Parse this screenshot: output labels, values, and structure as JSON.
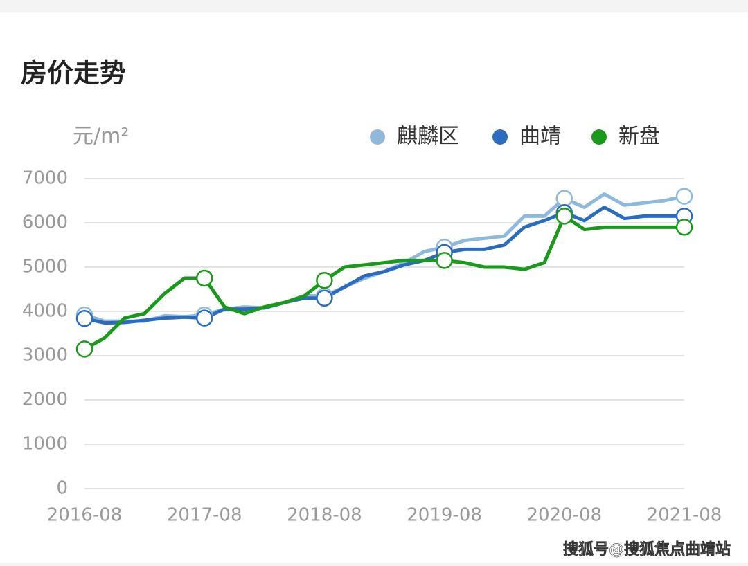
{
  "chart_data": {
    "type": "line",
    "title": "房价走势",
    "y_label": "元/m²",
    "categories": [
      "2016-08",
      null,
      null,
      null,
      null,
      null,
      "2017-08",
      null,
      null,
      null,
      null,
      null,
      "2018-08",
      null,
      null,
      null,
      null,
      null,
      "2019-08",
      null,
      null,
      null,
      null,
      null,
      "2020-08",
      null,
      null,
      null,
      null,
      null,
      "2021-08"
    ],
    "series": [
      {
        "name": "麒麟区",
        "color": "#8fb9dc",
        "values": [
          3920,
          3780,
          3780,
          3780,
          3900,
          3880,
          3920,
          4050,
          4100,
          4080,
          4200,
          4350,
          4350,
          4550,
          4750,
          4900,
          5100,
          5350,
          5450,
          5600,
          5650,
          5700,
          6150,
          6150,
          6550,
          6350,
          6650,
          6400,
          6450,
          6500,
          6600
        ]
      },
      {
        "name": "曲靖",
        "color": "#2a6cbf",
        "values": [
          3840,
          3740,
          3750,
          3800,
          3850,
          3870,
          3850,
          4050,
          4050,
          4080,
          4200,
          4300,
          4300,
          4550,
          4800,
          4900,
          5050,
          5150,
          5330,
          5400,
          5400,
          5500,
          5900,
          6050,
          6230,
          6050,
          6350,
          6100,
          6150,
          6150,
          6150
        ]
      },
      {
        "name": "新盘",
        "color": "#1a9a1a",
        "values": [
          3150,
          3400,
          3850,
          3950,
          4400,
          4750,
          4750,
          4100,
          3950,
          4100,
          4200,
          4350,
          4700,
          5000,
          5050,
          5100,
          5150,
          5150,
          5150,
          5100,
          5000,
          5000,
          4950,
          5100,
          6150,
          5850,
          5900,
          5900,
          5900,
          5900,
          5900
        ]
      }
    ],
    "ylim": [
      0,
      7000
    ],
    "yticks": [
      0,
      1000,
      2000,
      3000,
      4000,
      5000,
      6000,
      7000
    ],
    "grid": true,
    "watermark": "搜狐号@搜狐焦点曲靖站"
  }
}
